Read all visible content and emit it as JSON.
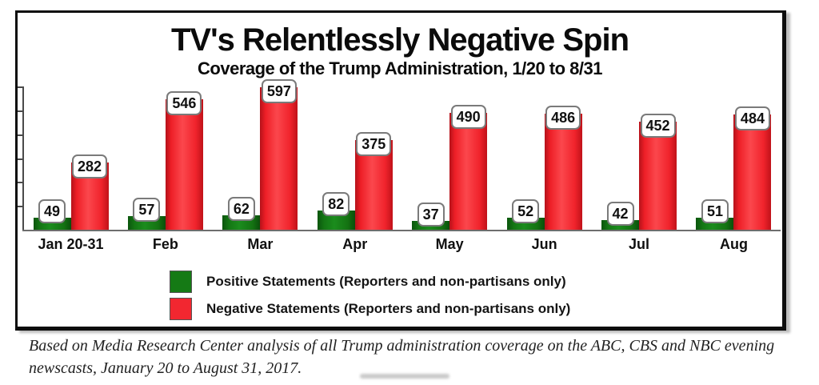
{
  "chart_data": {
    "type": "bar",
    "title": "TV's Relentlessly Negative Spin",
    "subtitle": "Coverage of the Trump Administration, 1/20 to 8/31",
    "categories": [
      "Jan 20-31",
      "Feb",
      "Mar",
      "Apr",
      "May",
      "Jun",
      "Jul",
      "Aug"
    ],
    "series": [
      {
        "name": "Positive Statements (Reporters and non-partisans only)",
        "color": "#157a15",
        "values": [
          49,
          57,
          62,
          82,
          37,
          52,
          42,
          51
        ]
      },
      {
        "name": "Negative Statements (Reporters and non-partisans only)",
        "color": "#f22730",
        "values": [
          282,
          546,
          597,
          375,
          490,
          486,
          452,
          484
        ]
      }
    ],
    "xlabel": "",
    "ylabel": "",
    "ylim": [
      0,
      600
    ],
    "y_tick_interval": 100,
    "y_tick_labels_shown": false,
    "grid": false,
    "data_labels": true,
    "legend_position": "bottom-inside"
  },
  "footnote": {
    "text": "Based on Media Research Center analysis of all Trump administration coverage on the ABC, CBS and NBC evening newscasts, January 20 to August 31, 2017."
  }
}
